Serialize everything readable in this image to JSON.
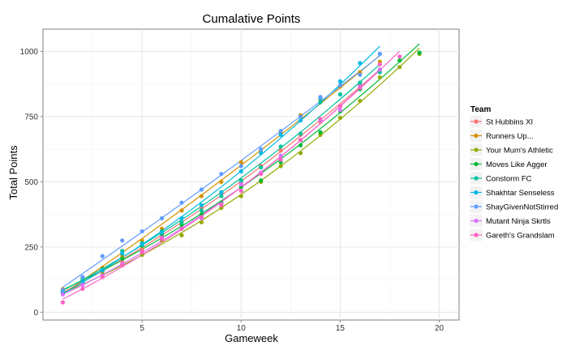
{
  "chart_data": {
    "type": "scatter",
    "title": "Cumalative Points",
    "xlabel": "Gameweek",
    "ylabel": "Total Points",
    "xlim": [
      0,
      21
    ],
    "ylim": [
      -30,
      1085
    ],
    "x_ticks": [
      5,
      10,
      15,
      20
    ],
    "y_ticks": [
      0,
      250,
      500,
      750,
      1000
    ],
    "grid": true,
    "trend_lines": true,
    "legend_title": "Team",
    "legend_position": "right",
    "series": [
      {
        "name": "St Hubbins XI",
        "color": "#F8766D",
        "x": [
          1,
          2,
          3,
          4,
          5,
          6,
          7,
          8,
          9,
          10,
          11,
          12,
          13,
          14,
          15,
          16,
          17
        ],
        "y": [
          80,
          120,
          155,
          195,
          240,
          295,
          345,
          400,
          455,
          500,
          560,
          620,
          680,
          730,
          790,
          870,
          930
        ]
      },
      {
        "name": "Runners Up...",
        "color": "#D39200",
        "x": [
          1,
          2,
          3,
          4,
          5,
          6,
          7,
          8,
          9,
          10,
          11,
          12,
          13,
          14,
          15,
          16,
          17
        ],
        "y": [
          88,
          130,
          170,
          215,
          275,
          320,
          390,
          445,
          500,
          575,
          620,
          690,
          755,
          815,
          865,
          920,
          960
        ]
      },
      {
        "name": "Your Mum's Athletic",
        "color": "#93AA00",
        "x": [
          1,
          2,
          3,
          4,
          5,
          6,
          7,
          8,
          9,
          10,
          11,
          12,
          13,
          14,
          15,
          16,
          17,
          18,
          19
        ],
        "y": [
          70,
          110,
          145,
          180,
          220,
          275,
          295,
          345,
          400,
          445,
          500,
          560,
          610,
          680,
          745,
          810,
          900,
          940,
          990
        ]
      },
      {
        "name": "Moves Like Agger",
        "color": "#00BA38",
        "x": [
          1,
          2,
          3,
          4,
          5,
          6,
          7,
          8,
          9,
          10,
          11,
          12,
          13,
          14,
          15,
          16,
          17,
          18,
          19
        ],
        "y": [
          78,
          118,
          160,
          205,
          255,
          300,
          335,
          375,
          420,
          480,
          505,
          575,
          640,
          690,
          770,
          855,
          930,
          965,
          995
        ]
      },
      {
        "name": "Constorm FC",
        "color": "#00C19F",
        "x": [
          1,
          2,
          3,
          4,
          5,
          6,
          7,
          8,
          9,
          10,
          11,
          12,
          13,
          14,
          15,
          16,
          17
        ],
        "y": [
          75,
          125,
          165,
          235,
          265,
          310,
          345,
          390,
          445,
          505,
          555,
          635,
          685,
          805,
          835,
          880,
          920
        ]
      },
      {
        "name": "Shakhtar Senseless",
        "color": "#00B9E3",
        "x": [
          1,
          2,
          3,
          4,
          5,
          6,
          7,
          8,
          9,
          10,
          11,
          12,
          13,
          14,
          15,
          16,
          17
        ],
        "y": [
          72,
          115,
          160,
          225,
          260,
          305,
          360,
          410,
          460,
          540,
          610,
          680,
          735,
          820,
          885,
          955,
          990
        ]
      },
      {
        "name": "ShayGivenNotStirred",
        "color": "#619CFF",
        "x": [
          1,
          2,
          3,
          4,
          5,
          6,
          7,
          8,
          9,
          10,
          11,
          12,
          13,
          14,
          15,
          16,
          17
        ],
        "y": [
          85,
          135,
          215,
          275,
          310,
          360,
          420,
          470,
          530,
          560,
          625,
          695,
          750,
          825,
          870,
          910,
          990
        ]
      },
      {
        "name": "Mutant Ninja Skrtls",
        "color": "#DB72FB",
        "x": [
          1,
          2,
          3,
          4,
          5,
          6,
          7,
          8,
          9,
          10,
          11,
          12,
          13,
          14,
          15,
          16,
          17
        ],
        "y": [
          68,
          105,
          140,
          185,
          230,
          285,
          320,
          360,
          415,
          490,
          535,
          600,
          660,
          735,
          775,
          865,
          930
        ]
      },
      {
        "name": "Gareth's Grandslam",
        "color": "#FF61C3",
        "x": [
          1,
          2,
          3,
          4,
          5,
          6,
          7,
          8,
          9,
          10,
          11,
          12,
          13,
          14,
          15,
          16,
          17,
          18
        ],
        "y": [
          38,
          90,
          135,
          180,
          230,
          280,
          320,
          365,
          410,
          465,
          530,
          585,
          660,
          740,
          790,
          860,
          950,
          980
        ]
      }
    ]
  }
}
